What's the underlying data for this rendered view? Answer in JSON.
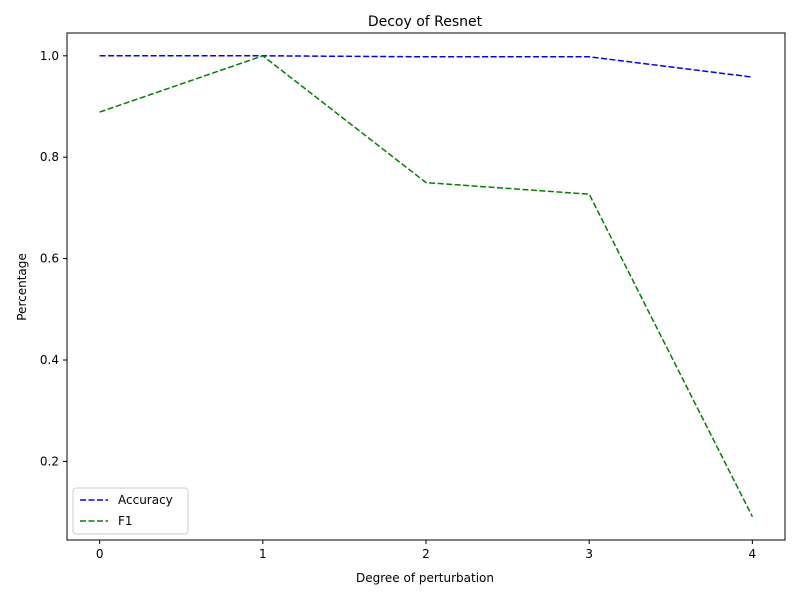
{
  "chart_data": {
    "type": "line",
    "title": "Decoy of Resnet",
    "xlabel": "Degree of perturbation",
    "ylabel": "Percentage",
    "x": [
      0,
      1,
      2,
      3,
      4
    ],
    "xticks": [
      "0",
      "1",
      "2",
      "3",
      "4"
    ],
    "yticks": [
      "0.2",
      "0.4",
      "0.6",
      "0.8",
      "1.0"
    ],
    "ytick_values": [
      0.2,
      0.4,
      0.6,
      0.8,
      1.0
    ],
    "xlim": [
      -0.2,
      4.2
    ],
    "ylim": [
      0.045,
      1.045
    ],
    "grid": false,
    "legend_position": "lower-left",
    "series": [
      {
        "name": "Accuracy",
        "values": [
          1.0,
          1.0,
          0.998,
          0.998,
          0.958
        ],
        "color": "#0000ff",
        "style": "dashed"
      },
      {
        "name": "F1",
        "values": [
          0.889,
          1.0,
          0.75,
          0.727,
          0.091
        ],
        "color": "#008000",
        "style": "dashed"
      }
    ]
  }
}
